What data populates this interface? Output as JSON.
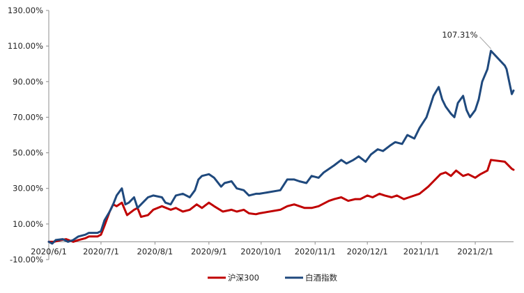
{
  "chart_data": {
    "type": "line",
    "title": "",
    "xlabel": "",
    "ylabel": "",
    "ylim": [
      -0.1,
      1.3
    ],
    "y_ticks": [
      -0.1,
      0.1,
      0.3,
      0.5,
      0.7,
      0.9,
      1.1,
      1.3
    ],
    "y_tick_labels": [
      "-10.00%",
      "10.00%",
      "30.00%",
      "50.00%",
      "70.00%",
      "90.00%",
      "110.00%",
      "130.00%"
    ],
    "xlim": [
      "2020-06-01",
      "2021-02-23"
    ],
    "x_ticks": [
      "2020-06-01",
      "2020-07-01",
      "2020-08-01",
      "2020-09-01",
      "2020-10-01",
      "2020-11-01",
      "2020-12-01",
      "2021-01-01",
      "2021-02-01"
    ],
    "x_tick_labels": [
      "2020/6/1",
      "2020/7/1",
      "2020/8/1",
      "2020/9/1",
      "2020/10/1",
      "2020/11/1",
      "2020/12/1",
      "2021/1/1",
      "2021/2/1"
    ],
    "grid": false,
    "legend_position": "bottom",
    "annotation": {
      "text": "107.31%",
      "x": "2021-02-10",
      "y": 1.0731
    },
    "series": [
      {
        "name": "沪深300",
        "color": "#c00000",
        "points": [
          [
            "2020-06-01",
            0.0
          ],
          [
            "2020-06-04",
            0.0
          ],
          [
            "2020-06-08",
            0.01
          ],
          [
            "2020-06-11",
            0.015
          ],
          [
            "2020-06-15",
            0.0
          ],
          [
            "2020-06-18",
            0.01
          ],
          [
            "2020-06-22",
            0.02
          ],
          [
            "2020-06-24",
            0.03
          ],
          [
            "2020-06-29",
            0.03
          ],
          [
            "2020-07-01",
            0.04
          ],
          [
            "2020-07-03",
            0.09
          ],
          [
            "2020-07-06",
            0.17
          ],
          [
            "2020-07-08",
            0.21
          ],
          [
            "2020-07-10",
            0.2
          ],
          [
            "2020-07-13",
            0.22
          ],
          [
            "2020-07-16",
            0.15
          ],
          [
            "2020-07-20",
            0.18
          ],
          [
            "2020-07-22",
            0.19
          ],
          [
            "2020-07-24",
            0.14
          ],
          [
            "2020-07-28",
            0.15
          ],
          [
            "2020-07-31",
            0.18
          ],
          [
            "2020-08-05",
            0.2
          ],
          [
            "2020-08-10",
            0.18
          ],
          [
            "2020-08-13",
            0.19
          ],
          [
            "2020-08-17",
            0.17
          ],
          [
            "2020-08-21",
            0.18
          ],
          [
            "2020-08-25",
            0.21
          ],
          [
            "2020-08-28",
            0.19
          ],
          [
            "2020-09-01",
            0.22
          ],
          [
            "2020-09-04",
            0.2
          ],
          [
            "2020-09-09",
            0.17
          ],
          [
            "2020-09-14",
            0.18
          ],
          [
            "2020-09-17",
            0.17
          ],
          [
            "2020-09-21",
            0.18
          ],
          [
            "2020-09-24",
            0.16
          ],
          [
            "2020-09-28",
            0.155
          ],
          [
            "2020-09-30",
            0.16
          ],
          [
            "2020-10-12",
            0.18
          ],
          [
            "2020-10-16",
            0.2
          ],
          [
            "2020-10-20",
            0.21
          ],
          [
            "2020-10-26",
            0.19
          ],
          [
            "2020-10-30",
            0.19
          ],
          [
            "2020-11-03",
            0.2
          ],
          [
            "2020-11-09",
            0.23
          ],
          [
            "2020-11-12",
            0.24
          ],
          [
            "2020-11-16",
            0.25
          ],
          [
            "2020-11-20",
            0.23
          ],
          [
            "2020-11-24",
            0.24
          ],
          [
            "2020-11-27",
            0.24
          ],
          [
            "2020-12-01",
            0.26
          ],
          [
            "2020-12-04",
            0.25
          ],
          [
            "2020-12-08",
            0.27
          ],
          [
            "2020-12-11",
            0.26
          ],
          [
            "2020-12-15",
            0.25
          ],
          [
            "2020-12-18",
            0.26
          ],
          [
            "2020-12-22",
            0.24
          ],
          [
            "2020-12-25",
            0.25
          ],
          [
            "2020-12-31",
            0.27
          ],
          [
            "2021-01-05",
            0.31
          ],
          [
            "2021-01-08",
            0.34
          ],
          [
            "2021-01-12",
            0.38
          ],
          [
            "2021-01-15",
            0.39
          ],
          [
            "2021-01-18",
            0.37
          ],
          [
            "2021-01-21",
            0.4
          ],
          [
            "2021-01-25",
            0.37
          ],
          [
            "2021-01-28",
            0.38
          ],
          [
            "2021-02-01",
            0.36
          ],
          [
            "2021-02-04",
            0.38
          ],
          [
            "2021-02-08",
            0.4
          ],
          [
            "2021-02-10",
            0.46
          ],
          [
            "2021-02-18",
            0.45
          ],
          [
            "2021-02-19",
            0.44
          ],
          [
            "2021-02-22",
            0.41
          ],
          [
            "2021-02-23",
            0.405
          ]
        ]
      },
      {
        "name": "白酒指数",
        "color": "#1f497d",
        "points": [
          [
            "2020-06-01",
            0.0
          ],
          [
            "2020-06-03",
            -0.01
          ],
          [
            "2020-06-05",
            0.01
          ],
          [
            "2020-06-09",
            0.015
          ],
          [
            "2020-06-12",
            0.0
          ],
          [
            "2020-06-15",
            0.01
          ],
          [
            "2020-06-18",
            0.03
          ],
          [
            "2020-06-22",
            0.04
          ],
          [
            "2020-06-24",
            0.05
          ],
          [
            "2020-06-29",
            0.05
          ],
          [
            "2020-07-01",
            0.06
          ],
          [
            "2020-07-03",
            0.12
          ],
          [
            "2020-07-06",
            0.17
          ],
          [
            "2020-07-08",
            0.21
          ],
          [
            "2020-07-10",
            0.26
          ],
          [
            "2020-07-13",
            0.3
          ],
          [
            "2020-07-15",
            0.21
          ],
          [
            "2020-07-17",
            0.22
          ],
          [
            "2020-07-20",
            0.25
          ],
          [
            "2020-07-22",
            0.19
          ],
          [
            "2020-07-24",
            0.21
          ],
          [
            "2020-07-28",
            0.25
          ],
          [
            "2020-07-31",
            0.26
          ],
          [
            "2020-08-05",
            0.25
          ],
          [
            "2020-08-07",
            0.22
          ],
          [
            "2020-08-10",
            0.21
          ],
          [
            "2020-08-13",
            0.26
          ],
          [
            "2020-08-17",
            0.27
          ],
          [
            "2020-08-21",
            0.25
          ],
          [
            "2020-08-24",
            0.29
          ],
          [
            "2020-08-26",
            0.35
          ],
          [
            "2020-08-28",
            0.37
          ],
          [
            "2020-09-01",
            0.38
          ],
          [
            "2020-09-04",
            0.36
          ],
          [
            "2020-09-08",
            0.31
          ],
          [
            "2020-09-10",
            0.33
          ],
          [
            "2020-09-14",
            0.34
          ],
          [
            "2020-09-17",
            0.3
          ],
          [
            "2020-09-21",
            0.29
          ],
          [
            "2020-09-24",
            0.26
          ],
          [
            "2020-09-28",
            0.27
          ],
          [
            "2020-09-30",
            0.27
          ],
          [
            "2020-10-12",
            0.29
          ],
          [
            "2020-10-16",
            0.35
          ],
          [
            "2020-10-20",
            0.35
          ],
          [
            "2020-10-23",
            0.34
          ],
          [
            "2020-10-27",
            0.33
          ],
          [
            "2020-10-30",
            0.37
          ],
          [
            "2020-11-03",
            0.36
          ],
          [
            "2020-11-06",
            0.39
          ],
          [
            "2020-11-09",
            0.41
          ],
          [
            "2020-11-12",
            0.43
          ],
          [
            "2020-11-16",
            0.46
          ],
          [
            "2020-11-19",
            0.44
          ],
          [
            "2020-11-23",
            0.46
          ],
          [
            "2020-11-26",
            0.48
          ],
          [
            "2020-11-30",
            0.45
          ],
          [
            "2020-12-03",
            0.49
          ],
          [
            "2020-12-07",
            0.52
          ],
          [
            "2020-12-10",
            0.51
          ],
          [
            "2020-12-14",
            0.54
          ],
          [
            "2020-12-17",
            0.56
          ],
          [
            "2020-12-21",
            0.55
          ],
          [
            "2020-12-24",
            0.6
          ],
          [
            "2020-12-28",
            0.58
          ],
          [
            "2020-12-31",
            0.64
          ],
          [
            "2021-01-04",
            0.7
          ],
          [
            "2021-01-06",
            0.76
          ],
          [
            "2021-01-08",
            0.82
          ],
          [
            "2021-01-11",
            0.87
          ],
          [
            "2021-01-13",
            0.8
          ],
          [
            "2021-01-15",
            0.76
          ],
          [
            "2021-01-18",
            0.72
          ],
          [
            "2021-01-20",
            0.7
          ],
          [
            "2021-01-22",
            0.78
          ],
          [
            "2021-01-25",
            0.82
          ],
          [
            "2021-01-27",
            0.74
          ],
          [
            "2021-01-29",
            0.7
          ],
          [
            "2021-02-01",
            0.74
          ],
          [
            "2021-02-03",
            0.8
          ],
          [
            "2021-02-05",
            0.9
          ],
          [
            "2021-02-08",
            0.97
          ],
          [
            "2021-02-10",
            1.0731
          ],
          [
            "2021-02-18",
            0.99
          ],
          [
            "2021-02-19",
            0.97
          ],
          [
            "2021-02-22",
            0.83
          ],
          [
            "2021-02-23",
            0.85
          ]
        ]
      }
    ]
  }
}
